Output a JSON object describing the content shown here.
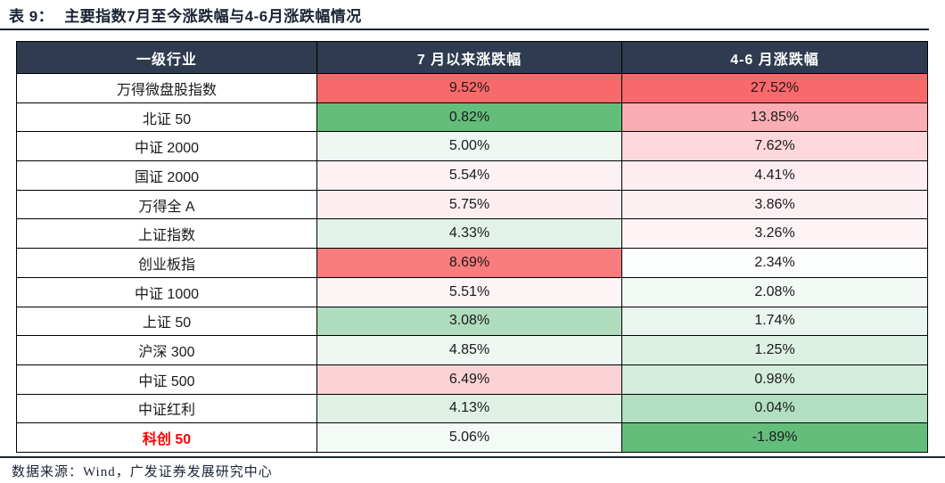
{
  "title": {
    "label": "表 9：",
    "text": "主要指数7月至今涨跌幅与4-6月涨跌幅情况"
  },
  "chart_data": {
    "type": "table",
    "title": "表 9：主要指数7月至今涨跌幅与4-6月涨跌幅情况",
    "columns": [
      "一级行业",
      "7 月以来涨跌幅",
      "4-6 月涨跌幅"
    ],
    "rows": [
      {
        "name": "万得微盘股指数",
        "jul": "9.52%",
        "jul_bg": "#F8696B",
        "q2": "27.52%",
        "q2_bg": "#F8696B"
      },
      {
        "name": "北证 50",
        "jul": "0.82%",
        "jul_bg": "#63BE7B",
        "q2": "13.85%",
        "q2_bg": "#FAAEB3"
      },
      {
        "name": "中证 2000",
        "jul": "5.00%",
        "jul_bg": "#EDF6F0",
        "q2": "7.62%",
        "q2_bg": "#FCD8DC"
      },
      {
        "name": "国证 2000",
        "jul": "5.54%",
        "jul_bg": "#FCF2F4",
        "q2": "4.41%",
        "q2_bg": "#FDEDF0"
      },
      {
        "name": "万得全 A",
        "jul": "5.75%",
        "jul_bg": "#FCEEF0",
        "q2": "3.86%",
        "q2_bg": "#FDF0F2"
      },
      {
        "name": "上证指数",
        "jul": "4.33%",
        "jul_bg": "#E3F2E8",
        "q2": "3.26%",
        "q2_bg": "#FEF4F5"
      },
      {
        "name": "创业板指",
        "jul": "8.69%",
        "jul_bg": "#F97C7F",
        "q2": "2.34%",
        "q2_bg": "#FCFDFD"
      },
      {
        "name": "中证 1000",
        "jul": "5.51%",
        "jul_bg": "#FDF4F5",
        "q2": "2.08%",
        "q2_bg": "#F3FAF6"
      },
      {
        "name": "上证 50",
        "jul": "3.08%",
        "jul_bg": "#AEDCBD",
        "q2": "1.74%",
        "q2_bg": "#E9F5EE"
      },
      {
        "name": "沪深 300",
        "jul": "4.85%",
        "jul_bg": "#EEF7F1",
        "q2": "1.25%",
        "q2_bg": "#DDF0E4"
      },
      {
        "name": "中证 500",
        "jul": "6.49%",
        "jul_bg": "#FBD2D5",
        "q2": "0.98%",
        "q2_bg": "#D4ECDC"
      },
      {
        "name": "中证红利",
        "jul": "4.13%",
        "jul_bg": "#DFF1E5",
        "q2": "0.04%",
        "q2_bg": "#B2DFC1"
      },
      {
        "name": "科创 50",
        "name_color": "#FF0000",
        "name_bold": true,
        "jul": "5.06%",
        "jul_bg": "#F4FAF6",
        "q2": "-1.89%",
        "q2_bg": "#63BE7B"
      }
    ],
    "heatmap_anchors": {
      "max_color": "#F8696B",
      "mid_color": "#FFFFFF",
      "min_color": "#63BE7B"
    }
  },
  "footer": {
    "source": "数据来源：Wind，广发证券发展研究中心"
  },
  "style": {
    "header_bg": "#2F3B50",
    "header_text": "#FFFFFF",
    "accent_dark": "#1A2433",
    "highlight_red": "#FF0000"
  }
}
